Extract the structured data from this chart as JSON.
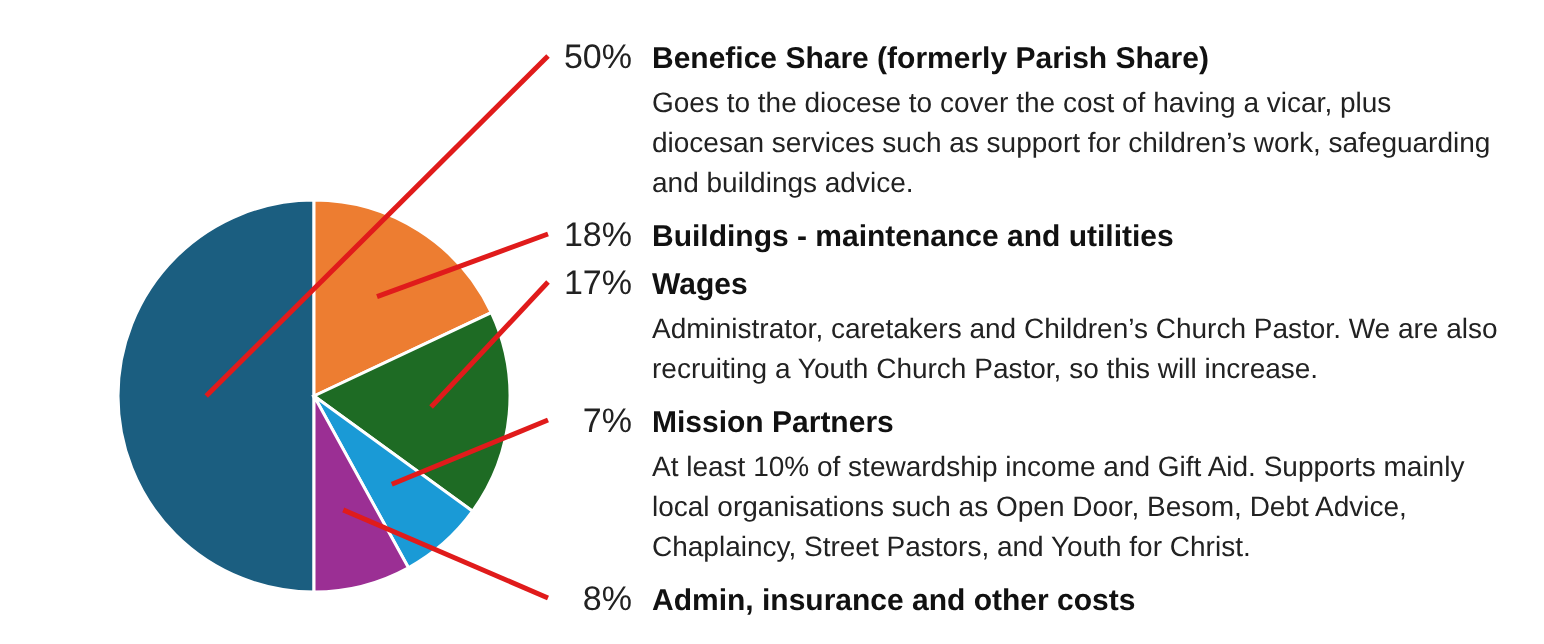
{
  "chart_data": {
    "type": "pie",
    "categories": [
      "Benefice Share (formerly Parish Share)",
      "Buildings - maintenance and utilities",
      "Wages",
      "Mission Partners",
      "Admin, insurance and other costs"
    ],
    "values": [
      50,
      18,
      17,
      7,
      8
    ],
    "value_labels": [
      "50%",
      "18%",
      "17%",
      "7%",
      "8%"
    ],
    "colors": [
      "#1b5e80",
      "#ed7d31",
      "#1e6b24",
      "#1a9ad6",
      "#9b2f94"
    ],
    "annotations": [
      {
        "text": "Goes to the diocese to cover the cost of having a vicar, plus diocesan services such as support for children’s work, safeguarding and buildings advice.",
        "x": "Benefice Share (formerly Parish Share)"
      },
      {
        "text": "Administrator, caretakers and Children’s Church Pastor. We are also recruiting a Youth Church Pastor, so this will increase.",
        "x": "Wages"
      },
      {
        "text": "At least 10% of stewardship income and Gift Aid. Supports mainly local organisations such as Open Door, Besom, Debt Advice, Chaplaincy, Street Pastors, and Youth for Christ.",
        "x": "Mission Partners"
      }
    ]
  }
}
